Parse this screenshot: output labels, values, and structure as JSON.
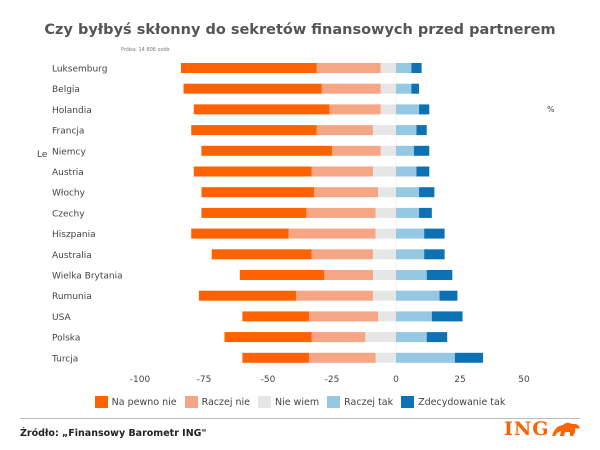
{
  "chart_data": {
    "type": "bar",
    "stacked": true,
    "orientation": "horizontal",
    "title": "Czy byłbyś skłonny do sekretów finansowych przed partnerem",
    "subtitle": "Próba: 14 806 osób",
    "categories": [
      "Luksemburg",
      "Belgia",
      "Holandia",
      "Francja",
      "Niemcy",
      "Austria",
      "Włochy",
      "Czechy",
      "Hiszpania",
      "Australia",
      "Wielka Brytania",
      "Rumunia",
      "USA",
      "Polska",
      "Turcja"
    ],
    "series": [
      {
        "name": "Na pewno nie",
        "color": "#FF6200",
        "values": [
          -53,
          -54,
          -53,
          -49,
          -51,
          -46,
          -44,
          -41,
          -38,
          -39,
          -33,
          -38,
          -26,
          -34,
          -26
        ]
      },
      {
        "name": "Raczej nie",
        "color": "#F7A685",
        "values": [
          -25,
          -23,
          -20,
          -22,
          -19,
          -24,
          -25,
          -27,
          -34,
          -24,
          -19,
          -30,
          -27,
          -21,
          -26
        ]
      },
      {
        "name": "Nie wiem",
        "color": "#E6E6E6",
        "values": [
          -6,
          -6,
          -6,
          -9,
          -6,
          -9,
          -7,
          -8,
          -8,
          -9,
          -9,
          -9,
          -7,
          -12,
          -8
        ]
      },
      {
        "name": "Raczej tak",
        "color": "#95C8E2",
        "values": [
          6,
          6,
          9,
          8,
          7,
          8,
          9,
          9,
          11,
          11,
          12,
          17,
          14,
          12,
          23
        ]
      },
      {
        "name": "Zdecydowanie tak",
        "color": "#0E71B3",
        "values": [
          4,
          3,
          4,
          4,
          6,
          5,
          6,
          5,
          8,
          8,
          10,
          7,
          12,
          8,
          11
        ]
      }
    ],
    "xlim": [
      -100,
      50
    ],
    "x_ticks": [
      -100,
      -75,
      -50,
      -25,
      0,
      25,
      50
    ],
    "xlabel": "",
    "ylabel": "",
    "legend_position": "bottom",
    "grid": false
  },
  "source": "Źródło: „Finansowy Barometr ING\"",
  "logo_text": "ING",
  "stray_labels": [
    "%",
    "Le"
  ]
}
